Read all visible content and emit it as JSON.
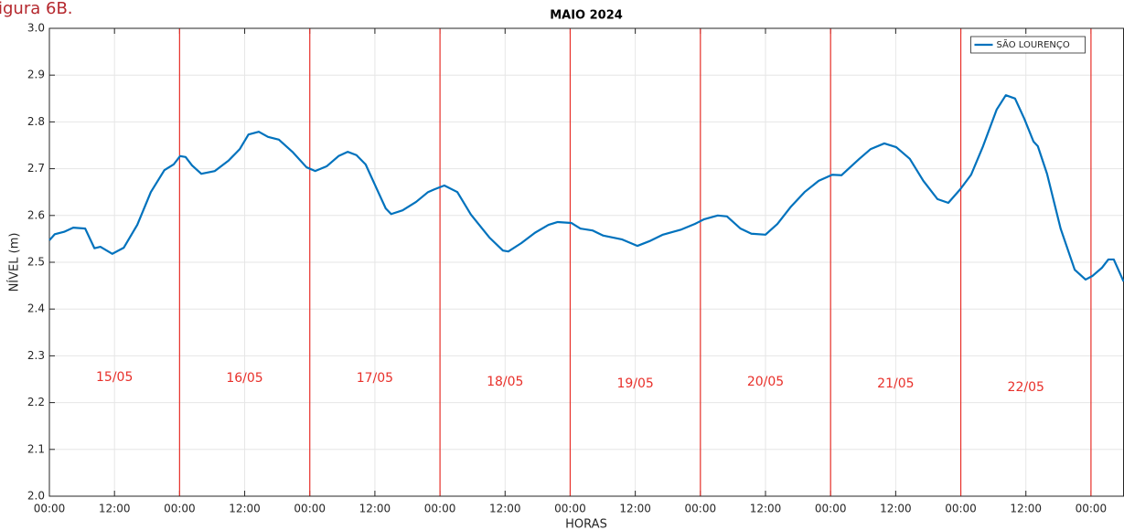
{
  "caption": "igura 6B.",
  "chart_data": {
    "type": "line",
    "title": "MAIO 2024",
    "xlabel": "HORAS",
    "ylabel": "NÍVEL (m)",
    "xlim": [
      0,
      198
    ],
    "ylim": [
      2,
      3
    ],
    "xticks": [
      {
        "value": 0,
        "label": "00:00"
      },
      {
        "value": 12,
        "label": "12:00"
      },
      {
        "value": 24,
        "label": "00:00"
      },
      {
        "value": 36,
        "label": "12:00"
      },
      {
        "value": 48,
        "label": "00:00"
      },
      {
        "value": 60,
        "label": "12:00"
      },
      {
        "value": 72,
        "label": "00:00"
      },
      {
        "value": 84,
        "label": "12:00"
      },
      {
        "value": 96,
        "label": "00:00"
      },
      {
        "value": 108,
        "label": "12:00"
      },
      {
        "value": 120,
        "label": "00:00"
      },
      {
        "value": 132,
        "label": "12:00"
      },
      {
        "value": 144,
        "label": "00:00"
      },
      {
        "value": 156,
        "label": "12:00"
      },
      {
        "value": 168,
        "label": "00:00"
      },
      {
        "value": 180,
        "label": "12:00"
      },
      {
        "value": 192,
        "label": "00:00"
      }
    ],
    "yticks": [
      {
        "value": 2,
        "label": "2.0"
      },
      2.1,
      2.2,
      2.3,
      2.4,
      2.5,
      2.6,
      2.7,
      2.8,
      2.9,
      {
        "value": 3,
        "label": "3.0"
      }
    ],
    "grid": true,
    "legend": "upper right",
    "day_lines": [
      24,
      48,
      72,
      96,
      120,
      144,
      168,
      192
    ],
    "day_line_color": "#e8302a",
    "annotations": [
      {
        "text": "15/05",
        "x": 12,
        "y": 2.254
      },
      {
        "text": "16/05",
        "x": 36,
        "y": 2.252
      },
      {
        "text": "17/05",
        "x": 60,
        "y": 2.252
      },
      {
        "text": "18/05",
        "x": 84,
        "y": 2.244
      },
      {
        "text": "19/05",
        "x": 108,
        "y": 2.24
      },
      {
        "text": "20/05",
        "x": 132,
        "y": 2.244
      },
      {
        "text": "21/05",
        "x": 156,
        "y": 2.24
      },
      {
        "text": "22/05",
        "x": 180,
        "y": 2.232
      }
    ],
    "series": [
      {
        "name": "SÃO LOURENÇO",
        "color": "#0072bd",
        "x": [
          0,
          1,
          2.7,
          4.4,
          6.6,
          8.3,
          9.4,
          11.6,
          13.7,
          16.2,
          18.7,
          21.2,
          22.9,
          24.1,
          25.1,
          26.3,
          28,
          30.5,
          33,
          35.1,
          36.7,
          38.6,
          40.3,
          42.3,
          44.8,
          47.4,
          49,
          51.1,
          53.3,
          55,
          56.6,
          58.3,
          60.3,
          62,
          63,
          65.1,
          67.6,
          69.8,
          71,
          72.8,
          75.2,
          77.7,
          81.1,
          83.6,
          84.6,
          87,
          89.5,
          92,
          93.7,
          96.2,
          97.9,
          100.1,
          102.1,
          105.5,
          108.4,
          110.6,
          113.1,
          116.5,
          119,
          120.7,
          123.2,
          124.9,
          127.4,
          129.4,
          132,
          134.2,
          136.7,
          139.2,
          141.8,
          144.3,
          146,
          147.6,
          149.3,
          151.4,
          153.9,
          156.1,
          158.6,
          161.1,
          163.7,
          165.7,
          167.9,
          169.9,
          172.1,
          174.6,
          176.3,
          178,
          179.7,
          181.4,
          182.2,
          183.9,
          186.4,
          189,
          191,
          192.3,
          194,
          195.2,
          196.2,
          198
        ],
        "values": [
          2.547,
          2.56,
          2.565,
          2.574,
          2.572,
          2.53,
          2.533,
          2.518,
          2.531,
          2.58,
          2.65,
          2.697,
          2.709,
          2.727,
          2.725,
          2.707,
          2.689,
          2.695,
          2.717,
          2.742,
          2.773,
          2.779,
          2.768,
          2.762,
          2.736,
          2.703,
          2.695,
          2.705,
          2.727,
          2.736,
          2.729,
          2.709,
          2.658,
          2.615,
          2.603,
          2.611,
          2.629,
          2.65,
          2.656,
          2.664,
          2.65,
          2.602,
          2.553,
          2.525,
          2.523,
          2.541,
          2.563,
          2.58,
          2.586,
          2.584,
          2.572,
          2.568,
          2.557,
          2.549,
          2.535,
          2.545,
          2.559,
          2.57,
          2.582,
          2.592,
          2.6,
          2.598,
          2.572,
          2.561,
          2.559,
          2.582,
          2.619,
          2.65,
          2.674,
          2.687,
          2.686,
          2.703,
          2.721,
          2.742,
          2.754,
          2.746,
          2.721,
          2.674,
          2.635,
          2.627,
          2.656,
          2.687,
          2.748,
          2.826,
          2.857,
          2.85,
          2.807,
          2.758,
          2.748,
          2.689,
          2.572,
          2.484,
          2.463,
          2.471,
          2.488,
          2.506,
          2.506,
          2.459
        ]
      }
    ]
  }
}
